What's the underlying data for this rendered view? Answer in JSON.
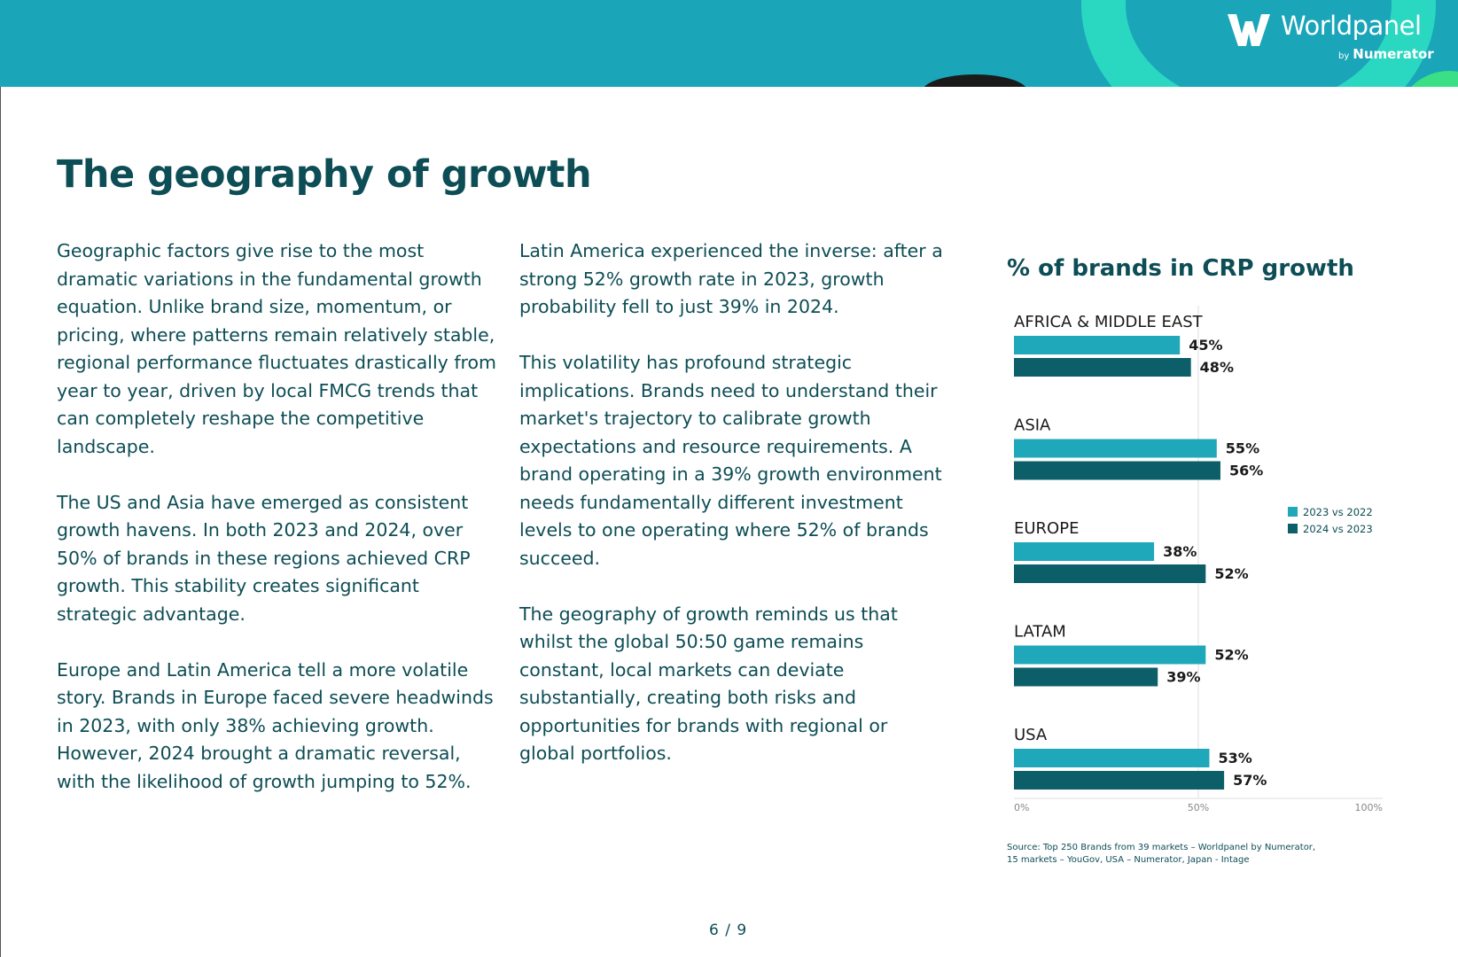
{
  "header": {
    "logo_name": "Worldpanel",
    "logo_by": "by",
    "logo_sub": "Numerator",
    "colors": {
      "banner": "#1aa5b9",
      "accent": "#2ad8c2",
      "green": "#3adf86"
    }
  },
  "page": {
    "title": "The geography of growth",
    "page_number": "6 / 9"
  },
  "body": {
    "column1": [
      "Geographic factors give rise to the most dramatic variations in the fundamental growth equation. Unlike brand size, momentum, or pricing, where patterns remain relatively stable, regional performance fluctuates drastically from year to year, driven by local FMCG trends that can completely reshape the competitive landscape.",
      "The US and Asia have emerged as consistent growth havens. In both 2023 and 2024, over 50% of brands in these regions achieved CRP growth. This stability creates significant strategic advantage.",
      "Europe and Latin America tell a more volatile story. Brands in Europe faced severe headwinds in 2023, with only 38% achieving growth. However, 2024 brought a dramatic reversal, with the likelihood of growth jumping to 52%."
    ],
    "column2": [
      "Latin America experienced the inverse: after a strong 52% growth rate in 2023, growth probability fell to just 39% in 2024.",
      "This volatility has profound strategic implications. Brands need to understand their market's trajectory to calibrate growth expectations and resource requirements. A brand operating in a 39% growth environment needs fundamentally different investment levels to one operating where 52% of brands succeed.",
      "The geography of growth reminds us that whilst the global 50:50 game remains constant, local markets can deviate substantially, creating both risks and opportunities for brands with regional or global portfolios."
    ]
  },
  "chart_data": {
    "type": "bar",
    "orientation": "horizontal",
    "title": "% of brands in CRP growth",
    "categories": [
      "AFRICA & MIDDLE EAST",
      "ASIA",
      "EUROPE",
      "LATAM",
      "USA"
    ],
    "series": [
      {
        "name": "2023 vs 2022",
        "color": "#1fa7ba",
        "values": [
          45,
          55,
          38,
          52,
          53
        ]
      },
      {
        "name": "2024 vs 2023",
        "color": "#0c5f69",
        "values": [
          48,
          56,
          52,
          39,
          57
        ]
      }
    ],
    "value_suffix": "%",
    "xlim": [
      0,
      100
    ],
    "xticks": [
      0,
      50,
      100
    ],
    "xtick_labels": [
      "0%",
      "50%",
      "100%"
    ],
    "legend_position": "right",
    "source": "Source: Top 250 Brands from 39 markets – Worldpanel by Numerator, 15 markets – YouGov, USA – Numerator, Japan - Intage"
  }
}
